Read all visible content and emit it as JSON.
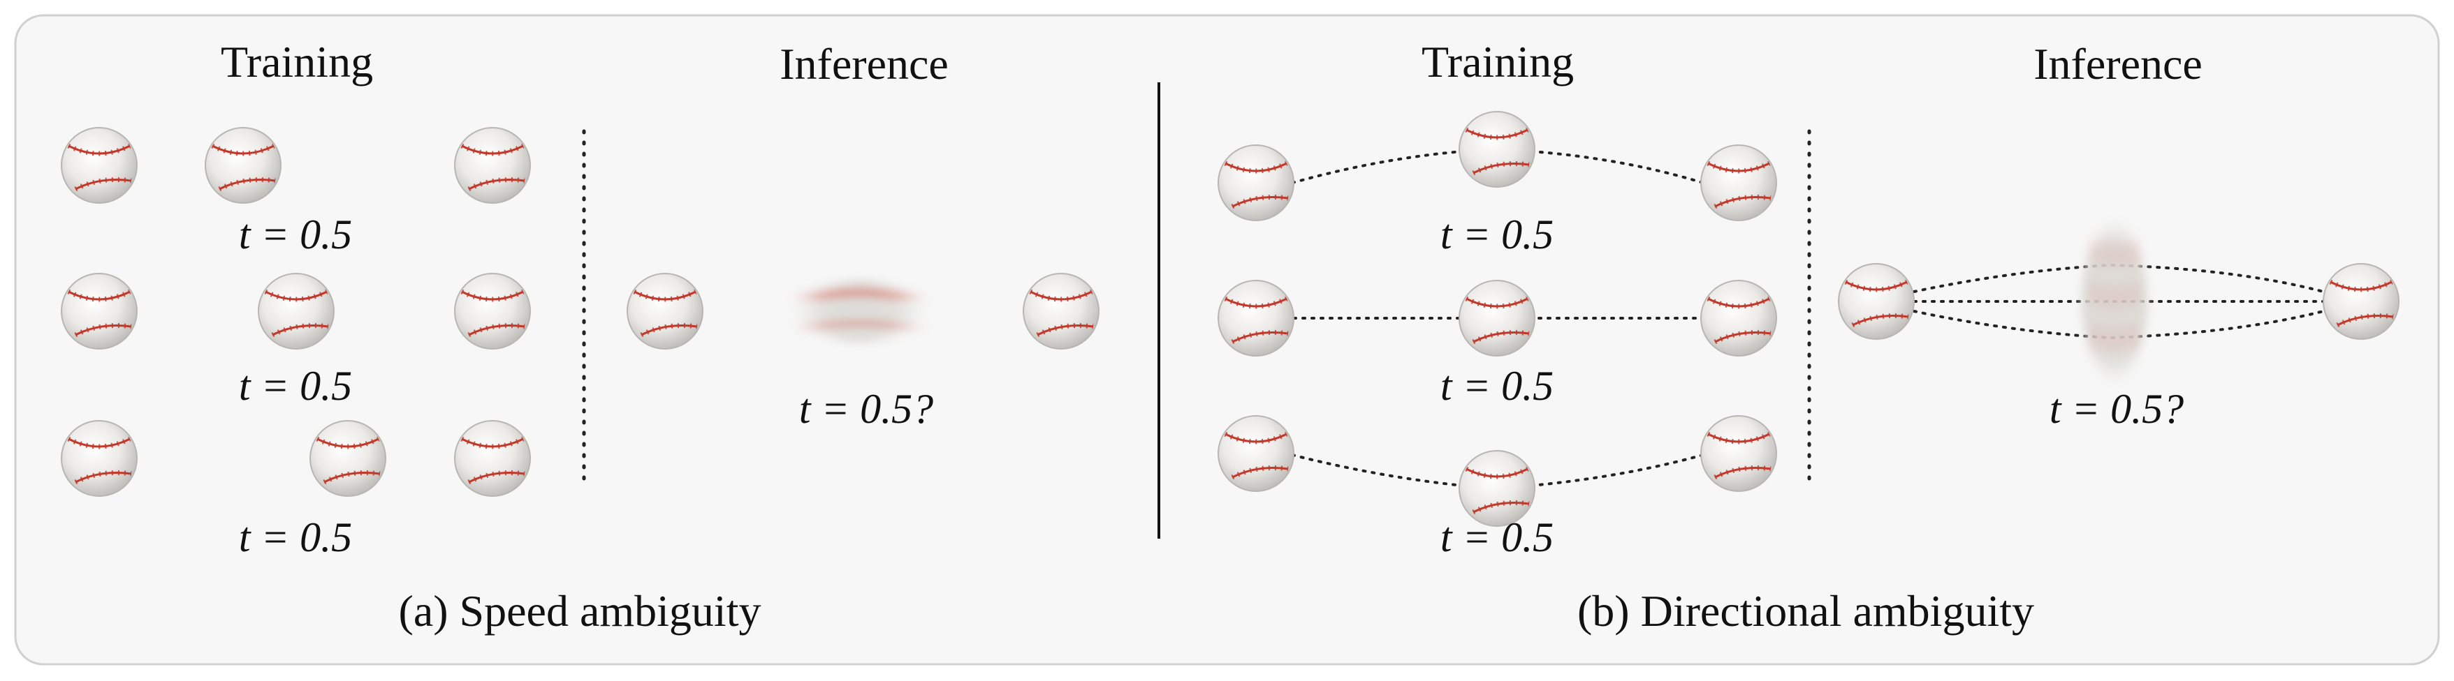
{
  "panel_a": {
    "training_title": "Training",
    "inference_title": "Inference",
    "training_time_labels": [
      "t = 0.5",
      "t = 0.5",
      "t = 0.5"
    ],
    "inference_time_label": "t = 0.5?",
    "caption": "(a) Speed ambiguity"
  },
  "panel_b": {
    "training_title": "Training",
    "inference_title": "Inference",
    "training_time_labels": [
      "t = 0.5",
      "t = 0.5",
      "t = 0.5"
    ],
    "inference_time_label": "t = 0.5?",
    "caption": "(b) Directional ambiguity"
  },
  "colors": {
    "panel_background": "#f7f7f7",
    "panel_border": "#d0d0d0",
    "ball_fill": "#efeeec",
    "ball_stitch": "#c0392b",
    "text": "#111111"
  }
}
